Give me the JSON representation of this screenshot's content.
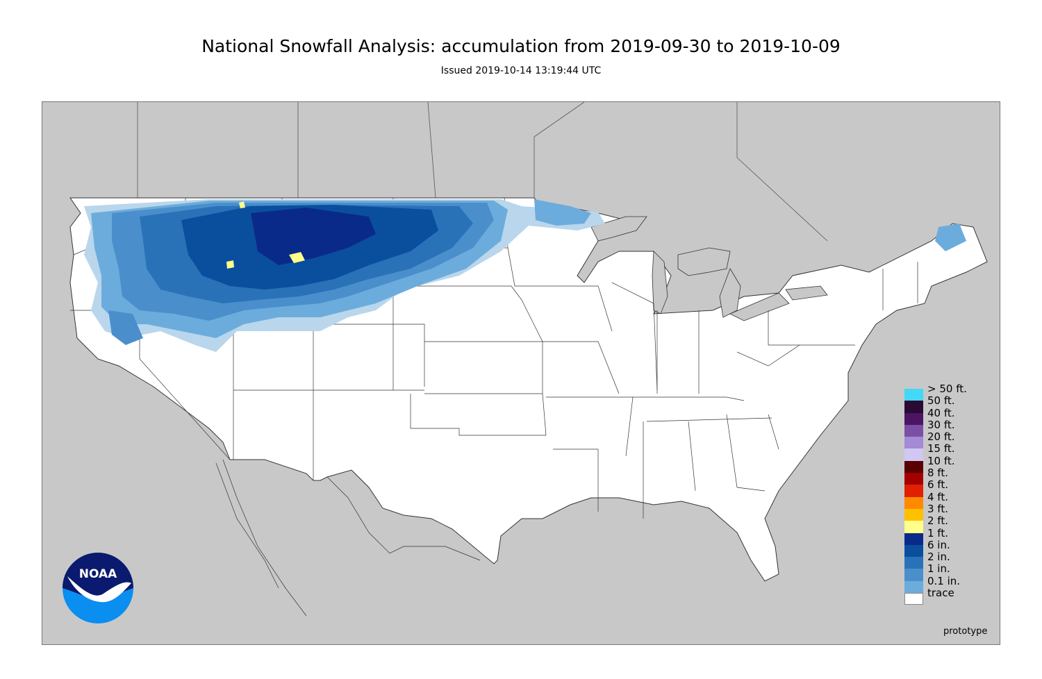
{
  "title": "National Snowfall Analysis: accumulation from 2019-09-30 to 2019-10-09",
  "subtitle": "Issued 2019-10-14 13:19:44 UTC",
  "footer_note": "prototype",
  "logo_text": "NOAA",
  "colors": {
    "ocean_and_foreign": "#c8c8c8",
    "land_us": "#ffffff",
    "border_line": "#333333",
    "trace": "#ffffff"
  },
  "legend": {
    "items": [
      {
        "label": "> 50 ft.",
        "color": "#43d8f5"
      },
      {
        "label": "50 ft.",
        "color": "#2a0a33"
      },
      {
        "label": "40 ft.",
        "color": "#4b1563"
      },
      {
        "label": "30 ft.",
        "color": "#7b4fa6"
      },
      {
        "label": "20 ft.",
        "color": "#a58ad6"
      },
      {
        "label": "15 ft.",
        "color": "#d0c8f2"
      },
      {
        "label": "10 ft.",
        "color": "#5a0000"
      },
      {
        "label": "8 ft.",
        "color": "#a50000"
      },
      {
        "label": "6 ft.",
        "color": "#e02000"
      },
      {
        "label": "4 ft.",
        "color": "#ff8a00"
      },
      {
        "label": "3 ft.",
        "color": "#ffc000"
      },
      {
        "label": "2 ft.",
        "color": "#ffff8a"
      },
      {
        "label": "1 ft.",
        "color": "#0a2a8a"
      },
      {
        "label": "6 in.",
        "color": "#0a4f9e"
      },
      {
        "label": "2 in.",
        "color": "#2a72b8"
      },
      {
        "label": "1 in.",
        "color": "#4a8fcc"
      },
      {
        "label": "0.1 in.",
        "color": "#6cacdc"
      },
      {
        "label": "trace",
        "color": "#b9d6ec"
      }
    ]
  }
}
